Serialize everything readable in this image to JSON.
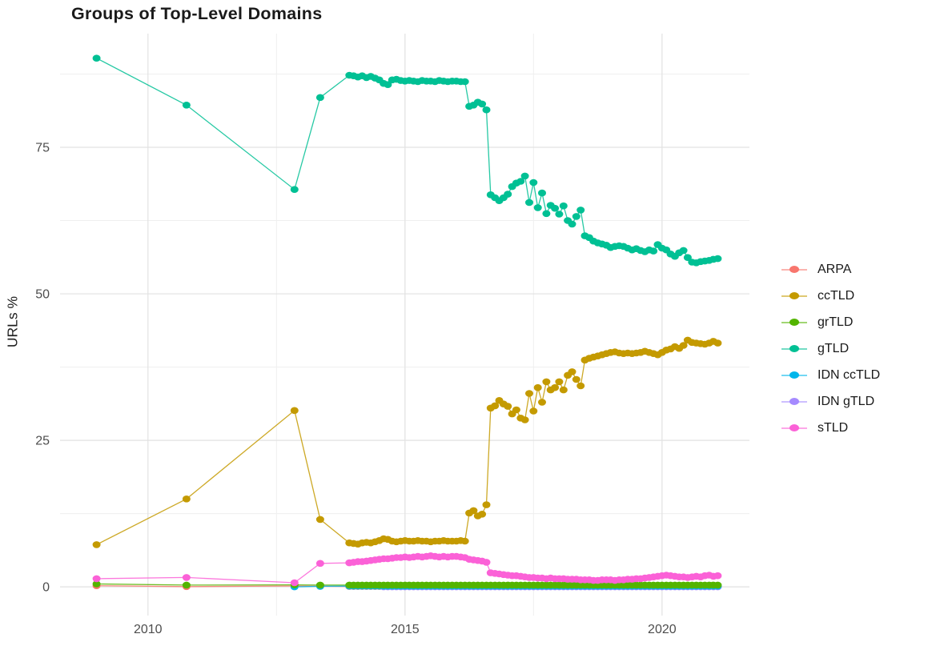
{
  "page": {
    "title": "Groups of Top-Level Domains",
    "y_axis_title": "URLs %"
  },
  "chart_data": {
    "type": "line",
    "title": "Groups of Top-Level Domains",
    "xlabel": "",
    "ylabel": "URLs %",
    "grid": true,
    "legend_position": "right",
    "xlim": [
      2008.29,
      2021.7
    ],
    "ylim": [
      -4.9,
      94.4
    ],
    "x_ticks": [
      [
        2010,
        "2010"
      ],
      [
        2015,
        "2015"
      ],
      [
        2020,
        "2020"
      ]
    ],
    "x_minor_gridlines": [
      2012.5,
      2017.5
    ],
    "y_ticks": [
      [
        0,
        "0"
      ],
      [
        25,
        "25"
      ],
      [
        50,
        "50"
      ],
      [
        75,
        "75"
      ]
    ],
    "y_minor_gridlines": [
      12.5,
      37.5,
      62.5,
      87.5
    ],
    "colors": {
      "major_grid": "#e2e2e2",
      "minor_grid": "#efefef",
      "tick_label": "#4d4d4d",
      "title_text": "#1a1a1a"
    },
    "monthly_x_start": 2013.9167,
    "monthly_x_step": 0.08333,
    "monthly_count": 87,
    "legend_order": [
      "ARPA",
      "ccTLD",
      "grTLD",
      "gTLD",
      "IDN ccTLD",
      "IDN gTLD",
      "sTLD"
    ],
    "draw_order": [
      "ARPA",
      "IDN gTLD",
      "IDN ccTLD",
      "grTLD",
      "ccTLD",
      "gTLD",
      "sTLD"
    ],
    "series": [
      {
        "name": "ARPA",
        "color": "#F8766D",
        "sparse": [
          [
            2009.0,
            0.2
          ],
          [
            2010.75,
            0.05
          ],
          [
            2012.85,
            0.15
          ],
          [
            2013.35,
            0.1
          ]
        ],
        "monthly_const": 0.07
      },
      {
        "name": "ccTLD",
        "color": "#C49A00",
        "sparse": [
          [
            2009.0,
            7.2
          ],
          [
            2010.75,
            15.0
          ],
          [
            2012.85,
            30.1
          ],
          [
            2013.35,
            11.5
          ]
        ],
        "monthly": [
          7.5,
          7.4,
          7.3,
          7.5,
          7.6,
          7.5,
          7.7,
          7.9,
          8.2,
          8.1,
          7.8,
          7.7,
          7.8,
          7.9,
          7.8,
          7.8,
          7.9,
          7.8,
          7.8,
          7.7,
          7.8,
          7.8,
          7.9,
          7.8,
          7.8,
          7.8,
          7.9,
          7.8,
          12.6,
          13.0,
          12.1,
          12.4,
          14.0,
          30.5,
          30.9,
          31.8,
          31.2,
          30.8,
          29.5,
          30.2,
          28.8,
          28.5,
          33.0,
          30.0,
          34.0,
          31.5,
          35.0,
          33.6,
          34.0,
          35.0,
          33.6,
          36.1,
          36.7,
          35.4,
          34.3,
          38.7,
          39.0,
          39.2,
          39.4,
          39.6,
          39.8,
          40.0,
          40.1,
          39.9,
          39.8,
          39.9,
          39.8,
          39.9,
          40.0,
          40.2,
          40.0,
          39.8,
          39.6,
          40.0,
          40.4,
          40.6,
          41.0,
          40.7,
          41.2,
          42.1,
          41.7,
          41.6,
          41.5,
          41.4,
          41.6,
          41.9,
          41.6
        ]
      },
      {
        "name": "grTLD",
        "color": "#53B400",
        "sparse": [
          [
            2009.0,
            0.5
          ],
          [
            2010.75,
            0.3
          ],
          [
            2012.85,
            0.35
          ],
          [
            2013.35,
            0.3
          ]
        ],
        "monthly_const": 0.3
      },
      {
        "name": "gTLD",
        "color": "#00C094",
        "sparse": [
          [
            2009.0,
            90.2
          ],
          [
            2010.75,
            82.2
          ],
          [
            2012.85,
            67.8
          ],
          [
            2013.35,
            83.5
          ]
        ],
        "monthly": [
          87.3,
          87.2,
          87.0,
          87.2,
          86.9,
          87.1,
          86.8,
          86.5,
          85.9,
          85.7,
          86.5,
          86.6,
          86.4,
          86.3,
          86.4,
          86.3,
          86.2,
          86.4,
          86.3,
          86.3,
          86.2,
          86.4,
          86.3,
          86.2,
          86.3,
          86.3,
          86.2,
          86.2,
          82.0,
          82.2,
          82.7,
          82.4,
          81.4,
          66.9,
          66.4,
          65.9,
          66.4,
          67.0,
          68.3,
          68.9,
          69.2,
          70.1,
          65.6,
          69.0,
          64.7,
          67.2,
          63.7,
          65.1,
          64.6,
          63.6,
          65.0,
          62.5,
          61.9,
          63.2,
          64.3,
          59.9,
          59.6,
          59.0,
          58.7,
          58.5,
          58.3,
          57.9,
          58.1,
          58.2,
          58.1,
          57.8,
          57.5,
          57.7,
          57.4,
          57.2,
          57.5,
          57.3,
          58.4,
          57.8,
          57.5,
          56.8,
          56.4,
          57.0,
          57.4,
          56.2,
          55.4,
          55.3,
          55.5,
          55.6,
          55.7,
          55.9,
          56.0
        ]
      },
      {
        "name": "IDN ccTLD",
        "color": "#00B6EB",
        "sparse": [
          [
            2012.85,
            0.0
          ],
          [
            2013.35,
            0.1
          ]
        ],
        "monthly_const": 0.12
      },
      {
        "name": "IDN gTLD",
        "color": "#A58AFF",
        "sparse": [],
        "monthly_const": 0.0,
        "monthly_start_index": 8
      },
      {
        "name": "sTLD",
        "color": "#FB61D7",
        "sparse": [
          [
            2009.0,
            1.4
          ],
          [
            2010.75,
            1.6
          ],
          [
            2012.85,
            0.7
          ],
          [
            2013.35,
            4.0
          ]
        ],
        "monthly": [
          4.1,
          4.2,
          4.3,
          4.3,
          4.4,
          4.5,
          4.6,
          4.7,
          4.8,
          4.8,
          4.9,
          5.0,
          5.0,
          5.1,
          5.0,
          5.1,
          5.2,
          5.1,
          5.2,
          5.3,
          5.2,
          5.1,
          5.2,
          5.1,
          5.2,
          5.2,
          5.1,
          5.0,
          4.7,
          4.6,
          4.5,
          4.4,
          4.2,
          2.4,
          2.3,
          2.2,
          2.1,
          2.0,
          1.9,
          1.9,
          1.8,
          1.7,
          1.6,
          1.6,
          1.5,
          1.5,
          1.4,
          1.5,
          1.4,
          1.4,
          1.4,
          1.3,
          1.3,
          1.3,
          1.2,
          1.2,
          1.2,
          1.1,
          1.1,
          1.2,
          1.2,
          1.2,
          1.1,
          1.2,
          1.2,
          1.3,
          1.3,
          1.4,
          1.4,
          1.5,
          1.6,
          1.7,
          1.8,
          1.9,
          2.0,
          1.9,
          1.8,
          1.7,
          1.7,
          1.6,
          1.7,
          1.8,
          1.7,
          1.9,
          2.0,
          1.8,
          1.9
        ]
      }
    ]
  }
}
